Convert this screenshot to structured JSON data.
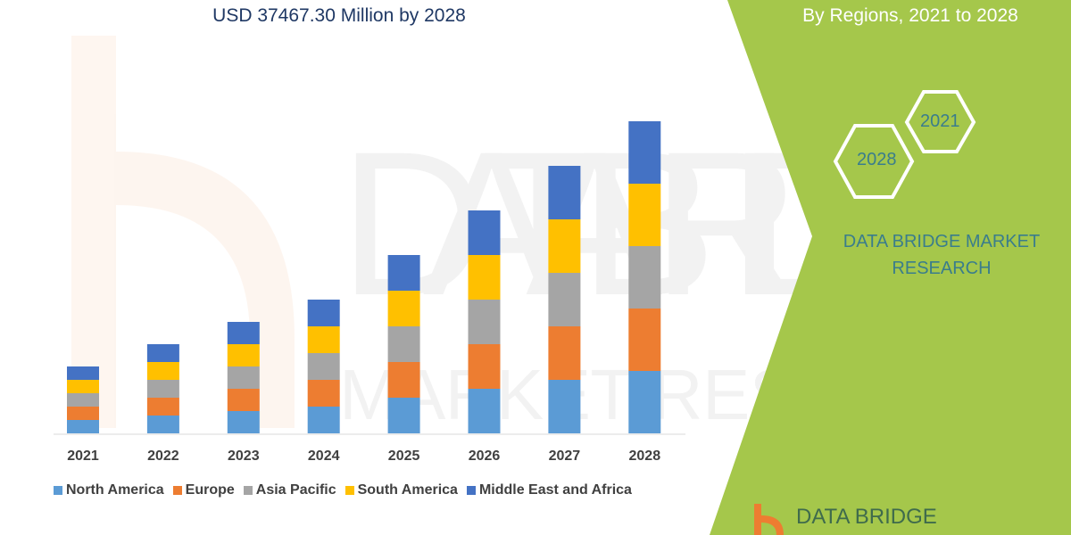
{
  "header": {
    "title_line": "USD 37467.30 Million by 2028",
    "subtitle": "By Regions, 2021 to 2028"
  },
  "side_panel": {
    "hex_start": "2021",
    "hex_end": "2028",
    "brand_line1": "DATA BRIDGE MARKET",
    "brand_line2": "RESEARCH",
    "logo_text": "DATA BRIDGE",
    "panel_color": "#a5c74b"
  },
  "chart_data": {
    "type": "bar",
    "stacked": true,
    "categories": [
      "2021",
      "2022",
      "2023",
      "2024",
      "2025",
      "2026",
      "2027",
      "2028"
    ],
    "series": [
      {
        "name": "North America",
        "color": "#5b9bd5",
        "values": [
          15,
          20,
          25,
          30,
          40,
          50,
          60,
          70
        ]
      },
      {
        "name": "Europe",
        "color": "#ed7d31",
        "values": [
          15,
          20,
          25,
          30,
          40,
          50,
          60,
          70
        ]
      },
      {
        "name": "Asia Pacific",
        "color": "#a5a5a5",
        "values": [
          15,
          20,
          25,
          30,
          40,
          50,
          60,
          70
        ]
      },
      {
        "name": "South America",
        "color": "#ffc000",
        "values": [
          15,
          20,
          25,
          30,
          40,
          50,
          60,
          70
        ]
      },
      {
        "name": "Middle East and Africa",
        "color": "#4472c4",
        "values": [
          15,
          20,
          25,
          30,
          40,
          50,
          60,
          70
        ]
      }
    ],
    "ylim": [
      0,
      370
    ],
    "y_axis_shown": false,
    "grid": false,
    "legend_position": "bottom"
  }
}
